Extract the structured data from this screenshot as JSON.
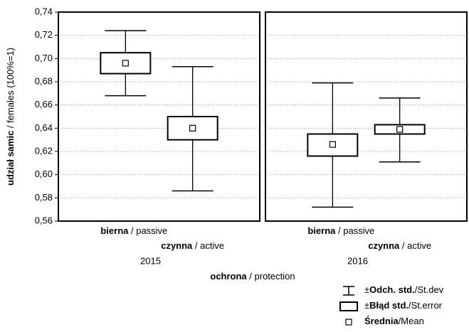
{
  "chart_data": {
    "type": "box",
    "y_label": {
      "bold": "udział samic",
      "rest": " / females (100%=1)"
    },
    "x_label": {
      "bold": "ochrona",
      "rest": " / protection"
    },
    "ylim": [
      0.56,
      0.74
    ],
    "yticks": [
      {
        "value": 0.56,
        "label": "0,56"
      },
      {
        "value": 0.58,
        "label": "0,58"
      },
      {
        "value": 0.6,
        "label": "0,60"
      },
      {
        "value": 0.62,
        "label": "0,62"
      },
      {
        "value": 0.64,
        "label": "0,64"
      },
      {
        "value": 0.66,
        "label": "0,66"
      },
      {
        "value": 0.68,
        "label": "0,68"
      },
      {
        "value": 0.7,
        "label": "0,70"
      },
      {
        "value": 0.72,
        "label": "0,72"
      },
      {
        "value": 0.74,
        "label": "0,74"
      }
    ],
    "grid": true,
    "panels": [
      {
        "title": "2015",
        "categories": [
          "bierna",
          "czynna"
        ],
        "category_translations": [
          " / passive",
          " / active"
        ],
        "mean": [
          0.696,
          0.64
        ],
        "box_low": [
          0.687,
          0.63
        ],
        "box_high": [
          0.705,
          0.65
        ],
        "whisker_low": [
          0.668,
          0.586
        ],
        "whisker_high": [
          0.724,
          0.693
        ]
      },
      {
        "title": "2016",
        "categories": [
          "bierna",
          "czynna"
        ],
        "category_translations": [
          " / passive",
          " / active"
        ],
        "mean": [
          0.626,
          0.639
        ],
        "box_low": [
          0.616,
          0.635
        ],
        "box_high": [
          0.635,
          0.643
        ],
        "whisker_low": [
          0.572,
          0.611
        ],
        "whisker_high": [
          0.679,
          0.666
        ]
      }
    ],
    "legend": [
      {
        "prefix": "±",
        "bold": "Odch. std.",
        "rest": "/St.dev"
      },
      {
        "prefix": "±",
        "bold": "Błąd std.",
        "rest": "/St.error"
      },
      {
        "prefix": "",
        "bold": "Średnia",
        "rest": "/Mean"
      }
    ]
  }
}
